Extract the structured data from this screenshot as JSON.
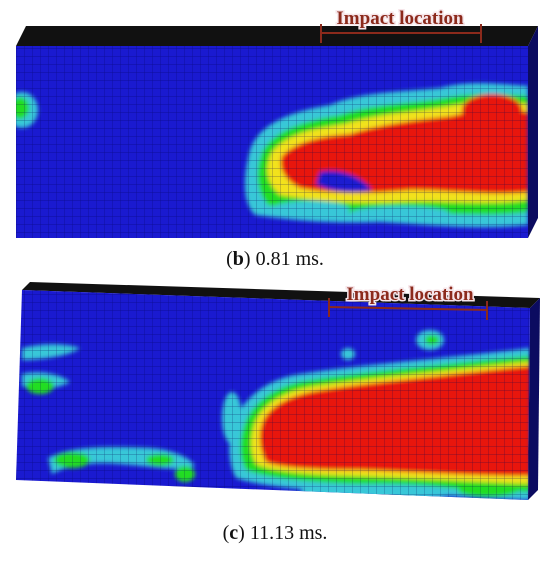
{
  "colors": {
    "background_mesh": "#1a1ad0",
    "cyan": "#38c7d8",
    "green": "#22dd22",
    "yellow": "#f2e21a",
    "red": "#e8160c",
    "top_face": "#111111",
    "bracket": "#8c2a1c"
  },
  "panels": [
    {
      "id": "b",
      "annotation": "Impact location",
      "caption_letter": "b",
      "caption_text": " 0.81 ms."
    },
    {
      "id": "c",
      "annotation": "Impact location",
      "caption_letter": "c",
      "caption_text": " 11.13 ms."
    }
  ]
}
